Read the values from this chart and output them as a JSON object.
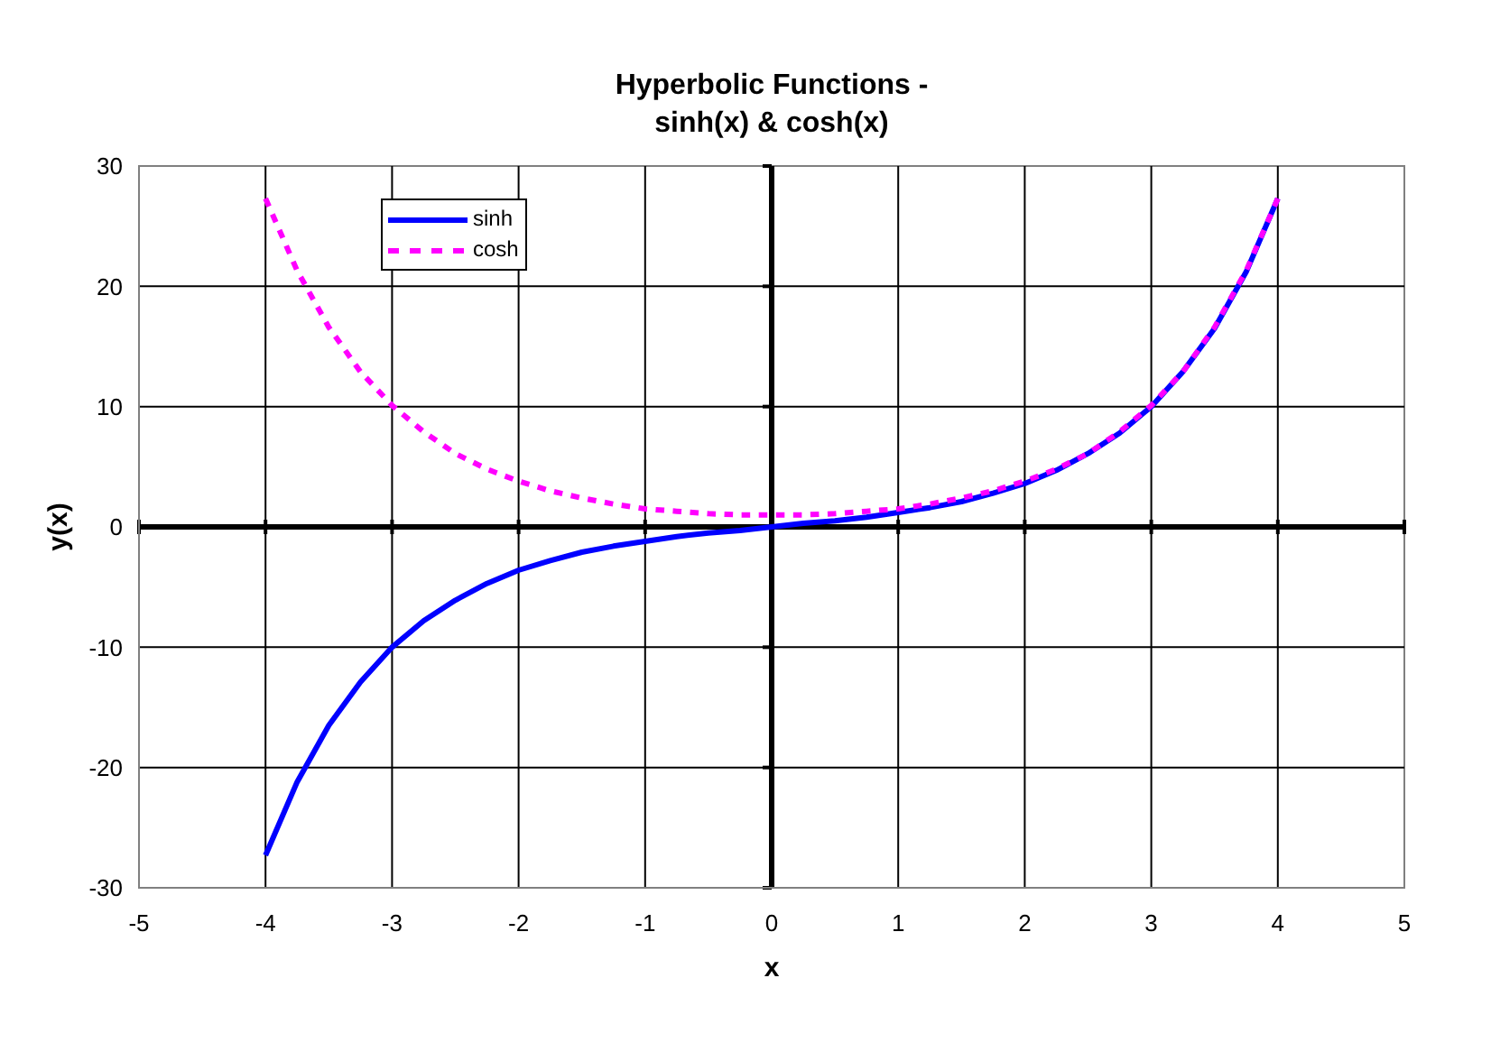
{
  "chart_data": {
    "type": "line",
    "title": "Hyperbolic Functions -\nsinh(x) & cosh(x)",
    "xlabel": "x",
    "ylabel": "y(x)",
    "x": [
      -4,
      -3.75,
      -3.5,
      -3.25,
      -3,
      -2.75,
      -2.5,
      -2.25,
      -2,
      -1.75,
      -1.5,
      -1.25,
      -1,
      -0.75,
      -0.5,
      -0.25,
      0,
      0.25,
      0.5,
      0.75,
      1,
      1.25,
      1.5,
      1.75,
      2,
      2.25,
      2.5,
      2.75,
      3,
      3.25,
      3.5,
      3.75,
      4
    ],
    "series": [
      {
        "name": "sinh",
        "color": "#0000ff",
        "line_style": "solid",
        "values": [
          -27.3,
          -21.2,
          -16.5,
          -12.9,
          -10.0,
          -7.8,
          -6.1,
          -4.7,
          -3.6,
          -2.8,
          -2.1,
          -1.6,
          -1.2,
          -0.8,
          -0.5,
          -0.3,
          0,
          0.3,
          0.5,
          0.8,
          1.2,
          1.6,
          2.1,
          2.8,
          3.6,
          4.7,
          6.1,
          7.8,
          10.0,
          12.9,
          16.5,
          21.2,
          27.3
        ]
      },
      {
        "name": "cosh",
        "color": "#ff00ff",
        "line_style": "dashed",
        "values": [
          27.3,
          21.3,
          16.6,
          12.9,
          10.1,
          7.9,
          6.1,
          4.8,
          3.8,
          3.0,
          2.4,
          1.9,
          1.5,
          1.3,
          1.1,
          1.0,
          1.0,
          1.0,
          1.1,
          1.3,
          1.5,
          1.9,
          2.4,
          3.0,
          3.8,
          4.8,
          6.1,
          7.9,
          10.1,
          12.9,
          16.6,
          21.3,
          27.3
        ]
      }
    ],
    "xlim": [
      -5,
      5
    ],
    "xticks": [
      -5,
      -4,
      -3,
      -2,
      -1,
      0,
      1,
      2,
      3,
      4,
      5
    ],
    "ylim": [
      -30,
      30
    ],
    "yticks": [
      -30,
      -20,
      -10,
      0,
      10,
      20,
      30
    ],
    "grid": true,
    "legend": "top left",
    "marker": "none"
  }
}
